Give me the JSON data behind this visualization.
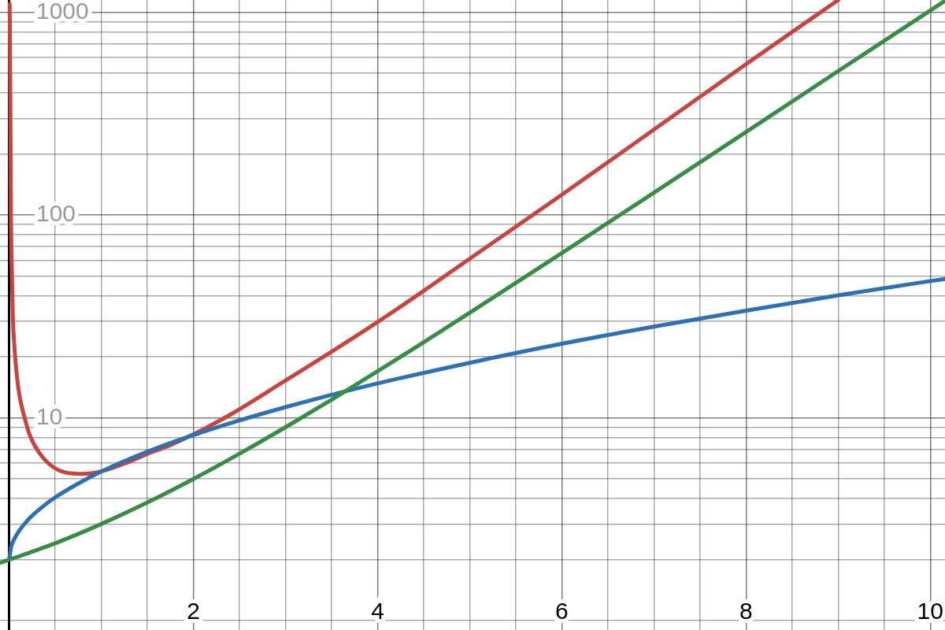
{
  "chart_data": {
    "type": "line",
    "log": "y",
    "grid": true,
    "marker": "none",
    "line_style": "solid",
    "xlim": [
      -0.1,
      10.16
    ],
    "ylim": [
      0.9,
      1150
    ],
    "xticks": [
      {
        "value": 0,
        "label": null
      },
      {
        "value": 0.5,
        "label": null
      },
      {
        "value": 1,
        "label": null
      },
      {
        "value": 1.5,
        "label": null
      },
      2,
      {
        "value": 2.5,
        "label": null
      },
      {
        "value": 3,
        "label": null
      },
      {
        "value": 3.5,
        "label": null
      },
      4,
      {
        "value": 4.5,
        "label": null
      },
      {
        "value": 5,
        "label": null
      },
      {
        "value": 5.5,
        "label": null
      },
      6,
      {
        "value": 6.5,
        "label": null
      },
      {
        "value": 7,
        "label": null
      },
      {
        "value": 7.5,
        "label": null
      },
      8,
      {
        "value": 8.5,
        "label": null
      },
      {
        "value": 9,
        "label": null
      },
      {
        "value": 9.5,
        "label": null
      },
      10
    ],
    "yticks": [
      {
        "value": 1,
        "label": null
      },
      {
        "value": 2,
        "label": null
      },
      {
        "value": 3,
        "label": null
      },
      {
        "value": 4,
        "label": null
      },
      {
        "value": 5,
        "label": null
      },
      {
        "value": 6,
        "label": null
      },
      {
        "value": 7,
        "label": null
      },
      {
        "value": 8,
        "label": null
      },
      {
        "value": 9,
        "label": null
      },
      10,
      {
        "value": 20,
        "label": null
      },
      {
        "value": 30,
        "label": null
      },
      {
        "value": 40,
        "label": null
      },
      {
        "value": 50,
        "label": null
      },
      {
        "value": 60,
        "label": null
      },
      {
        "value": 70,
        "label": null
      },
      {
        "value": 80,
        "label": null
      },
      {
        "value": 90,
        "label": null
      },
      100,
      {
        "value": 200,
        "label": null
      },
      {
        "value": 300,
        "label": null
      },
      {
        "value": 400,
        "label": null
      },
      {
        "value": 500,
        "label": null
      },
      {
        "value": 600,
        "label": null
      },
      {
        "value": 700,
        "label": null
      },
      {
        "value": 800,
        "label": null
      },
      {
        "value": 900,
        "label": null
      },
      1000
    ],
    "series": [
      {
        "color": "#c74440",
        "x": [
          0.005,
          0.013,
          0.019,
          0.03,
          0.04,
          0.055,
          0.076,
          0.11,
          0.168,
          0.22,
          0.32,
          0.46,
          0.6,
          0.8,
          1.0,
          1.25,
          1.5,
          1.75,
          2.0,
          2.42,
          3.0,
          3.5,
          4.0,
          4.5,
          5.0,
          6.0,
          7.0,
          8.0,
          8.5,
          8.94,
          9.0
        ],
        "values": [
          1100,
          330,
          100,
          50,
          31,
          23,
          17.4,
          13,
          10,
          8.3,
          6.8,
          5.8,
          5.4,
          5.3,
          5.45,
          5.95,
          6.65,
          7.35,
          8.3,
          10.5,
          15.3,
          21.2,
          29.7,
          42.3,
          61,
          126,
          264,
          555,
          800,
          1100,
          1150
        ]
      },
      {
        "color": "#2d70b3",
        "x": [
          0,
          0.02,
          0.05,
          0.1,
          0.2,
          0.35,
          0.5,
          0.75,
          1,
          1.5,
          2,
          2.5,
          3,
          3.5,
          4,
          5,
          6,
          7,
          8,
          9,
          10,
          10.16
        ],
        "values": [
          2.0,
          2.3,
          2.5,
          2.74,
          3.13,
          3.61,
          4.06,
          4.75,
          5.44,
          6.81,
          8.23,
          9.72,
          11.3,
          13.0,
          14.8,
          18.7,
          23.2,
          28.2,
          33.8,
          40.2,
          47.3,
          48.4
        ]
      },
      {
        "color": "#388c46",
        "x": [
          -0.1,
          0,
          0.5,
          1,
          1.5,
          2,
          2.5,
          3,
          3.5,
          4,
          4.5,
          5,
          6,
          7,
          8,
          9,
          10,
          10.16
        ],
        "values": [
          1.93,
          2.0,
          2.41,
          3.0,
          3.83,
          5.0,
          6.66,
          9.0,
          12.3,
          17.0,
          23.6,
          33.0,
          65.0,
          129,
          257,
          513,
          1020,
          1140
        ]
      }
    ]
  }
}
